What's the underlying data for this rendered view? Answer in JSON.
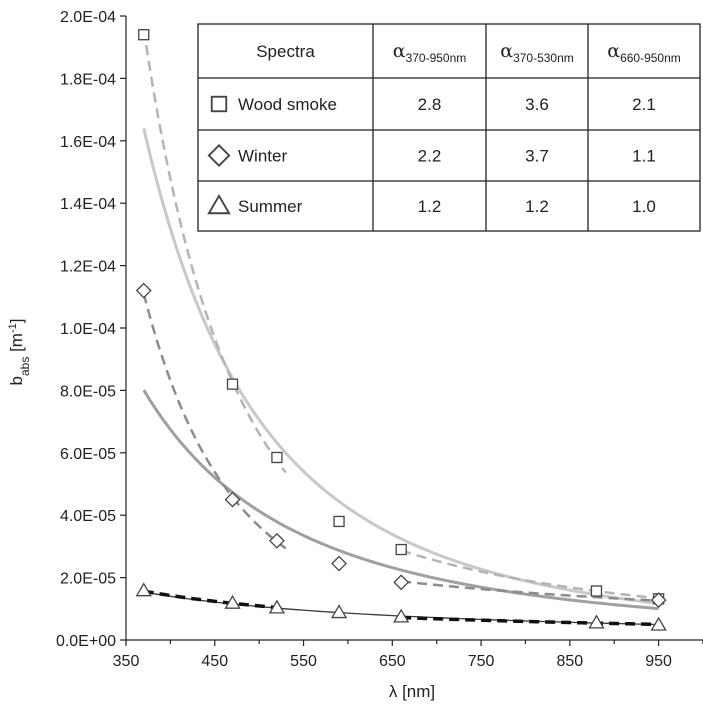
{
  "chart_data": {
    "type": "scatter",
    "xlabel": "λ [nm]",
    "ylabel_main": "b",
    "ylabel_sub": "abs",
    "ylabel_unit_pre": " [m",
    "ylabel_unit_sup": "-1",
    "ylabel_unit_post": "]",
    "xlim": [
      350,
      1000
    ],
    "ylim": [
      0,
      0.0002
    ],
    "x_ticks": [
      350,
      450,
      550,
      650,
      750,
      850,
      950
    ],
    "x_tick_labels": [
      "350",
      "450",
      "550",
      "650",
      "750",
      "850",
      "950"
    ],
    "y_ticks": [
      0,
      2e-05,
      4e-05,
      6e-05,
      8e-05,
      0.0001,
      0.00012,
      0.00014,
      0.00016,
      0.00018,
      0.0002
    ],
    "y_tick_labels": [
      "0.0E+00",
      "2.0E-05",
      "4.0E-05",
      "6.0E-05",
      "8.0E-05",
      "1.0E-04",
      "1.2E-04",
      "1.4E-04",
      "1.6E-04",
      "1.8E-04",
      "2.0E-04"
    ],
    "grid": false,
    "series": [
      {
        "name": "Wood smoke",
        "marker": "square",
        "x": [
          370,
          470,
          520,
          590,
          660,
          880,
          950
        ],
        "y": [
          0.000194,
          8.2e-05,
          5.85e-05,
          3.8e-05,
          2.9e-05,
          1.57e-05,
          1.32e-05
        ],
        "fit_alpha": 2.8,
        "fit_color": "#c8c8c8",
        "segment_color": "#b4b4b4",
        "segment_alphas": [
          3.6,
          2.1
        ]
      },
      {
        "name": "Winter",
        "marker": "diamond",
        "x": [
          370,
          470,
          520,
          590,
          660,
          950
        ],
        "y": [
          0.000112,
          4.5e-05,
          3.18e-05,
          2.45e-05,
          1.85e-05,
          1.28e-05
        ],
        "fit_alpha": 2.2,
        "fit_color": "#a0a0a0",
        "segment_color": "#8c8c8c",
        "segment_alphas": [
          3.7,
          1.1
        ]
      },
      {
        "name": "Summer",
        "marker": "triangle",
        "x": [
          370,
          470,
          520,
          590,
          660,
          880,
          950
        ],
        "y": [
          1.58e-05,
          1.18e-05,
          1.03e-05,
          8.8e-06,
          7.4e-06,
          5.5e-06,
          4.8e-06
        ],
        "fit_alpha": 1.2,
        "fit_color": "#3a3a3a",
        "segment_color": "#111111",
        "segment_alphas": [
          1.2,
          1.0
        ]
      }
    ],
    "table": {
      "header_spectra": "Spectra",
      "alpha_symbol": "α",
      "columns": [
        "370-950nm",
        "370-530nm",
        "660-950nm"
      ],
      "rows": [
        {
          "marker": "square",
          "label": "Wood smoke",
          "values": [
            "2.8",
            "3.6",
            "2.1"
          ]
        },
        {
          "marker": "diamond",
          "label": "Winter",
          "values": [
            "2.2",
            "3.7",
            "1.1"
          ]
        },
        {
          "marker": "triangle",
          "label": "Summer",
          "values": [
            "1.2",
            "1.2",
            "1.0"
          ]
        }
      ]
    }
  }
}
